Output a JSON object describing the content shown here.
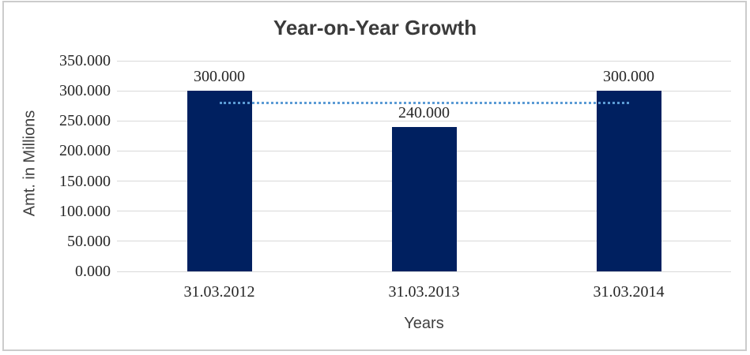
{
  "chart": {
    "title": "Year-on-Year Growth",
    "x_axis_title": "Years",
    "y_axis_title": "Amt. in Millions"
  },
  "chart_data": {
    "type": "bar",
    "title": "Year-on-Year Growth",
    "xlabel": "Years",
    "ylabel": "Amt. in Millions",
    "categories": [
      "31.03.2012",
      "31.03.2013",
      "31.03.2014"
    ],
    "values": [
      300,
      240,
      300
    ],
    "data_labels": [
      "300.000",
      "240.000",
      "300.000"
    ],
    "ylim": [
      0,
      350
    ],
    "y_ticks": [
      0,
      50,
      100,
      150,
      200,
      250,
      300,
      350
    ],
    "y_tick_labels": [
      "0.000",
      "50.000",
      "100.000",
      "150.000",
      "200.000",
      "250.000",
      "300.000",
      "350.000"
    ],
    "grid": true,
    "legend": false,
    "bar_color": "#002060",
    "gridline_color": "#d9d9d9",
    "trendline": {
      "type": "linear",
      "value": 280,
      "style": "dotted",
      "color": "#5b9bd5",
      "spans_categories": [
        0,
        2
      ]
    }
  }
}
